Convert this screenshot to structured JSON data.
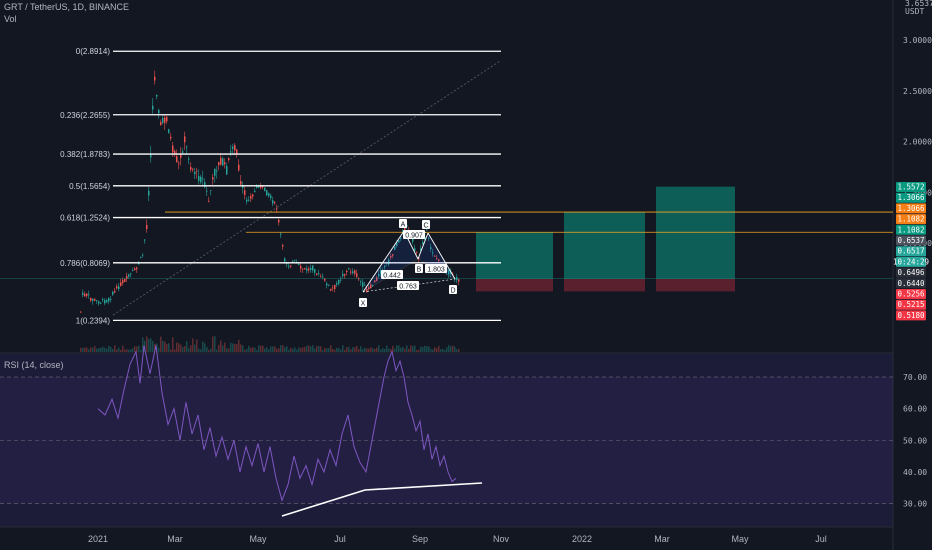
{
  "header": {
    "symbol_line": "GRT / TetherUS, 1D, BINANCE",
    "vol_label": "Vol",
    "top_price": "3.6537",
    "currency": "USDT",
    "rsi_label": "RSI (14, close)"
  },
  "chart_data": [
    {
      "type": "line",
      "subtype": "candlestick-with-fibonacci",
      "price_axis_ticks": [
        "3.0000",
        "2.5000",
        "2.0000",
        "1.5000",
        "1.0000"
      ],
      "time_axis_ticks": [
        "2021",
        "Mar",
        "May",
        "Jul",
        "Sep",
        "Nov",
        "2022",
        "Mar",
        "May",
        "Jul"
      ],
      "fib_levels": [
        {
          "label": "0(2.8914)",
          "price": 2.8914
        },
        {
          "label": "0.236(2.2655)",
          "price": 2.2655
        },
        {
          "label": "0.382(1.8783)",
          "price": 1.8783
        },
        {
          "label": "0.5(1.5654)",
          "price": 1.5654
        },
        {
          "label": "0.618(1.2524)",
          "price": 1.2524
        },
        {
          "label": "0.786(0.8069)",
          "price": 0.8069
        },
        {
          "label": "1(0.2394)",
          "price": 0.2394
        }
      ],
      "price_tags": [
        {
          "text": "1.5572",
          "color": "#089981"
        },
        {
          "text": "1.3066",
          "color": "#089981"
        },
        {
          "text": "1.3066",
          "color": "#f57f17"
        },
        {
          "text": "1.1082",
          "color": "#f57f17"
        },
        {
          "text": "1.1082",
          "color": "#089981"
        },
        {
          "text": "0.6537",
          "color": "#4c525e"
        },
        {
          "text": "0.6517",
          "color": "#26a69a"
        },
        {
          "text": "10:24:29",
          "color": "#26a69a"
        },
        {
          "text": "0.6496",
          "color": "#2a2e39"
        },
        {
          "text": "0.6440",
          "color": "#2a2e39"
        },
        {
          "text": "0.5256",
          "color": "#f23645"
        },
        {
          "text": "0.5215",
          "color": "#f23645"
        },
        {
          "text": "0.5180",
          "color": "#f23645"
        }
      ],
      "pattern_points": [
        "X",
        "A",
        "B",
        "C",
        "D"
      ],
      "pattern_ratios": [
        "0.907",
        "0.442",
        "0.763",
        "1.803"
      ]
    },
    {
      "type": "line",
      "title": "RSI (14, close)",
      "axis_ticks": [
        "70.00",
        "60.00",
        "50.00",
        "40.00",
        "30.00"
      ],
      "ylim": [
        25,
        80
      ]
    }
  ]
}
